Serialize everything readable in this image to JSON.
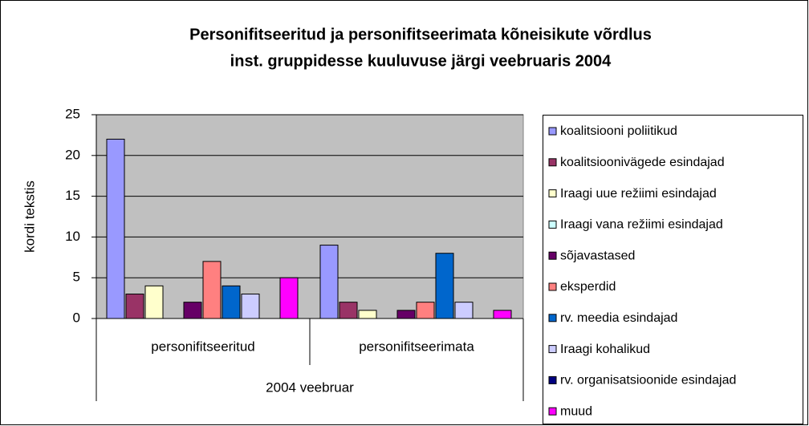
{
  "chart_data": {
    "type": "bar",
    "title": [
      "Personifitseeritud ja personifitseerimata kõneisikute võrdlus",
      "inst. gruppidesse kuuluvuse järgi veebruaris 2004"
    ],
    "y_label": "kordi tekstis",
    "categories": [
      "personifitseeritud",
      "personifitseerimata"
    ],
    "group_label": "2004 veebruar",
    "ylim": [
      0,
      25
    ],
    "yticks": [
      0,
      5,
      10,
      15,
      20,
      25
    ],
    "grid": true,
    "legend": "right",
    "series": [
      {
        "name": "koalitsiooni poliitikud",
        "color": "#9999FF",
        "values": [
          22,
          9
        ]
      },
      {
        "name": "koalitsioonivägede esindajad",
        "color": "#993366",
        "values": [
          3,
          2
        ]
      },
      {
        "name": "Iraagi uue režiimi esindajad",
        "color": "#FFFFCC",
        "values": [
          4,
          1
        ]
      },
      {
        "name": "Iraagi vana režiimi esindajad",
        "color": "#CCFFFF",
        "values": [
          0,
          0
        ]
      },
      {
        "name": "sõjavastased",
        "color": "#660066",
        "values": [
          2,
          1
        ]
      },
      {
        "name": "eksperdid",
        "color": "#FF8080",
        "values": [
          7,
          2
        ]
      },
      {
        "name": "rv. meedia esindajad",
        "color": "#0066CC",
        "values": [
          4,
          8
        ]
      },
      {
        "name": "Iraagi kohalikud",
        "color": "#CCCCFF",
        "values": [
          3,
          2
        ]
      },
      {
        "name": "rv. organisatsioonide esindajad",
        "color": "#000080",
        "values": [
          0,
          0
        ]
      },
      {
        "name": "muud",
        "color": "#FF00FF",
        "values": [
          5,
          1
        ]
      }
    ]
  }
}
